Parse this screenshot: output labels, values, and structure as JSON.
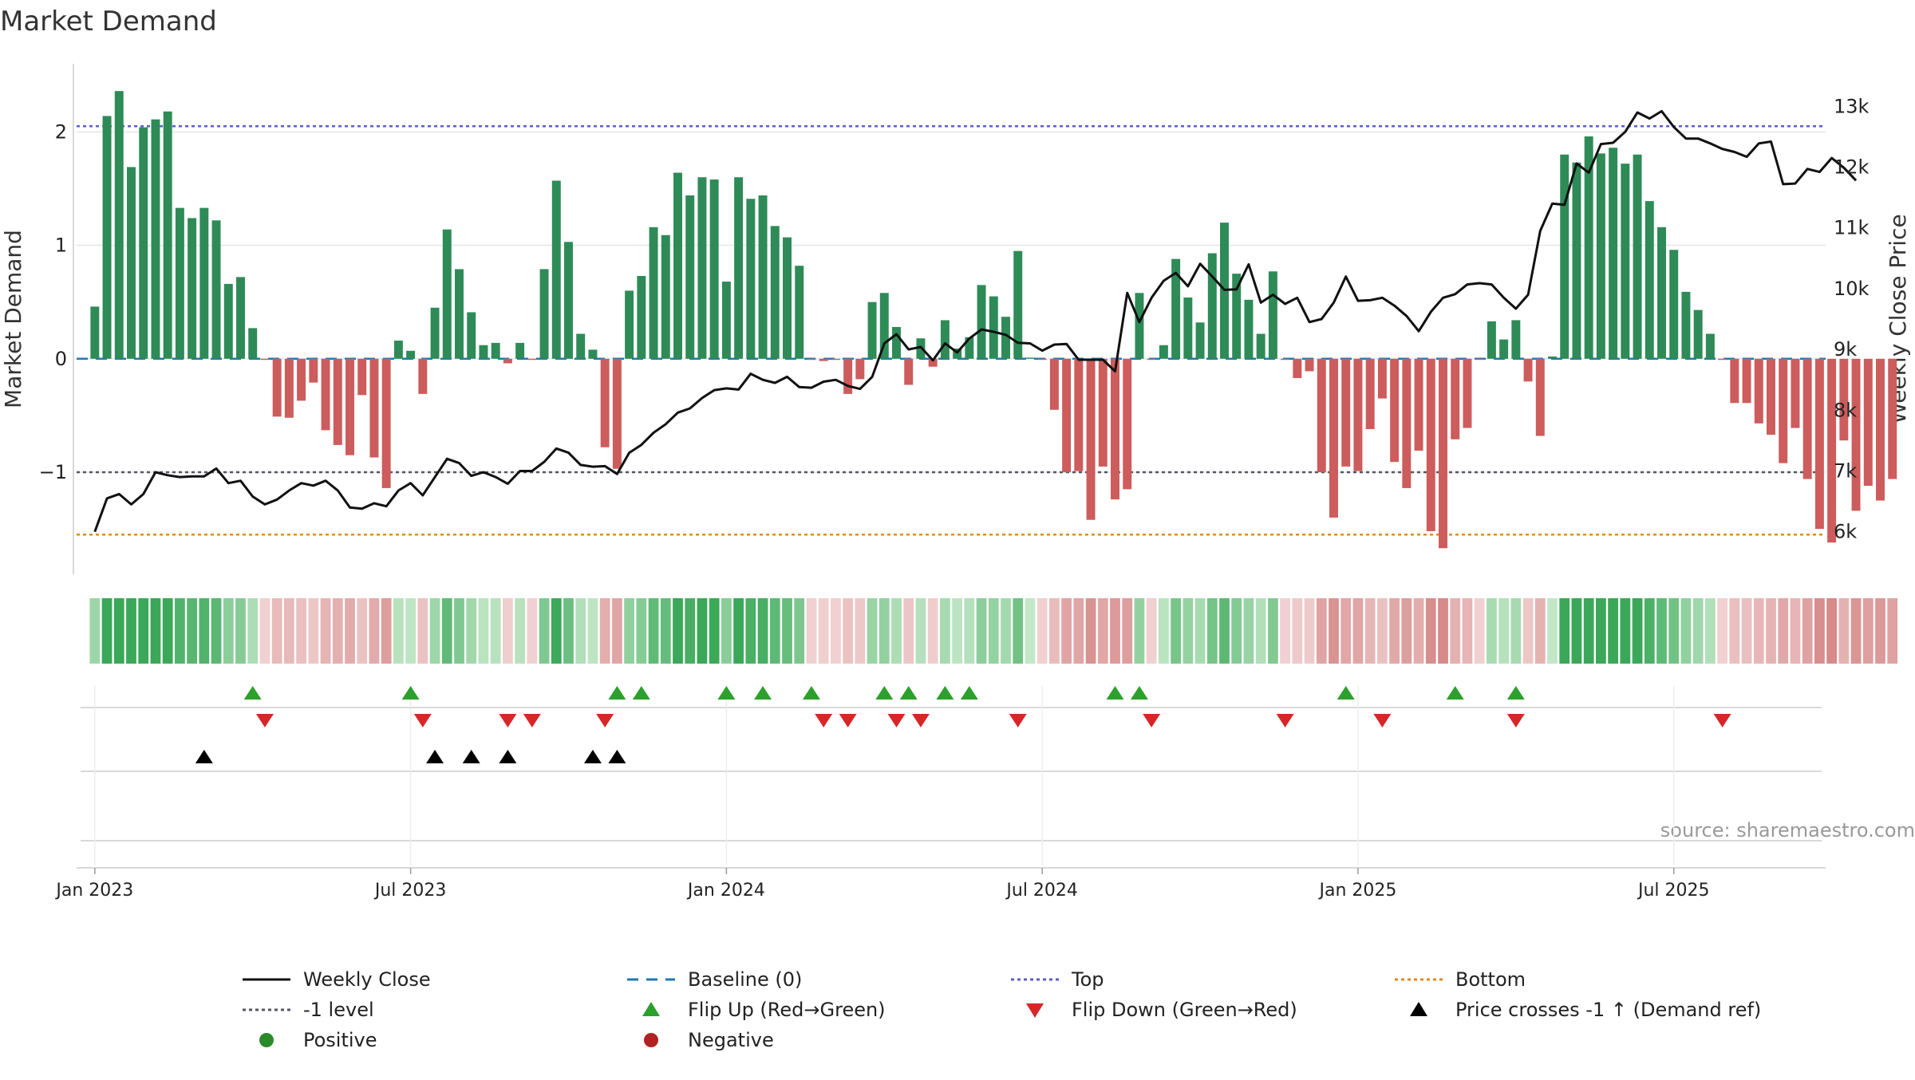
{
  "chart_data": {
    "type": "bar",
    "title": "Market Demand",
    "source": "source: sharemaestro.com",
    "y_left": {
      "label": "Market Demand",
      "ticks": [
        2,
        1,
        0,
        -1
      ],
      "tick_labels": [
        "2",
        "1",
        "0",
        "−1"
      ],
      "range": [
        -1.9,
        2.6
      ]
    },
    "y_right": {
      "label": "Weekly Close Price",
      "ticks": [
        13000,
        12000,
        11000,
        10000,
        9000,
        8000,
        7000,
        6000
      ],
      "tick_labels": [
        "13k",
        "12k",
        "11k",
        "10k",
        "9k",
        "8k",
        "7k",
        "6k"
      ],
      "range": [
        5300,
        13700
      ]
    },
    "x": {
      "start": "2022-12-26",
      "weeks": 143,
      "ticks": [
        0,
        26,
        52,
        78,
        104,
        130
      ],
      "tick_labels": [
        "Jan 2023",
        "Jul 2023",
        "Jan 2024",
        "Jul 2024",
        "Jan 2025",
        "Jul 2025"
      ],
      "range": [
        -1.5,
        142.5
      ]
    },
    "reference_lines": {
      "top": 2.05,
      "minus_one": -1.0,
      "bottom": -1.55,
      "baseline": 0
    },
    "demand": [
      0.46,
      2.14,
      2.36,
      1.69,
      2.04,
      2.11,
      2.18,
      1.33,
      1.24,
      1.33,
      1.22,
      0.66,
      0.72,
      0.27,
      -0.01,
      -0.51,
      -0.52,
      -0.37,
      -0.21,
      -0.63,
      -0.76,
      -0.85,
      -0.32,
      -0.87,
      -1.14,
      0.16,
      0.07,
      -0.31,
      0.45,
      1.14,
      0.79,
      0.41,
      0.12,
      0.14,
      -0.04,
      0.14,
      -0.01,
      0.79,
      1.57,
      1.03,
      0.22,
      0.08,
      -0.78,
      -0.97,
      0.6,
      0.73,
      1.16,
      1.09,
      1.64,
      1.44,
      1.6,
      1.58,
      0.68,
      1.6,
      1.41,
      1.44,
      1.17,
      1.07,
      0.82,
      -0.01,
      -0.02,
      -0.01,
      -0.31,
      -0.18,
      0.5,
      0.58,
      0.28,
      -0.23,
      0.18,
      -0.07,
      0.34,
      0.09,
      0.19,
      0.65,
      0.55,
      0.37,
      0.95,
      0.01,
      -0.01,
      -0.45,
      -1.0,
      -0.99,
      -1.42,
      -0.95,
      -1.24,
      -1.15,
      0.58,
      -0.01,
      0.12,
      0.88,
      0.54,
      0.32,
      0.93,
      1.2,
      0.75,
      0.52,
      0.22,
      0.77,
      -0.01,
      -0.17,
      -0.11,
      -1.0,
      -1.4,
      -0.95,
      -0.99,
      -0.62,
      -0.35,
      -0.91,
      -1.14,
      -0.81,
      -1.52,
      -1.67,
      -0.71,
      -0.61,
      -0.01,
      0.33,
      0.17,
      0.34,
      -0.2,
      -0.68,
      0.02,
      1.8,
      1.73,
      1.96,
      1.81,
      1.86,
      1.72,
      1.8,
      1.39,
      1.16,
      0.96,
      0.59,
      0.43,
      0.22,
      -0.01,
      -0.39,
      -0.39,
      -0.57,
      -0.67,
      -0.92,
      -0.61,
      -1.06,
      -1.5,
      -1.62,
      -0.72,
      -1.34,
      -1.12,
      -1.25,
      -1.06
    ],
    "weekly_close": [
      6000,
      6550,
      6620,
      6450,
      6620,
      6980,
      6930,
      6900,
      6910,
      6910,
      7040,
      6800,
      6840,
      6580,
      6450,
      6530,
      6680,
      6800,
      6760,
      6840,
      6680,
      6400,
      6380,
      6470,
      6420,
      6680,
      6800,
      6600,
      6900,
      7200,
      7130,
      6920,
      6980,
      6900,
      6790,
      7000,
      7000,
      7150,
      7370,
      7300,
      7100,
      7070,
      7080,
      6950,
      7300,
      7430,
      7630,
      7770,
      7960,
      8030,
      8200,
      8330,
      8360,
      8340,
      8600,
      8500,
      8450,
      8550,
      8380,
      8370,
      8470,
      8500,
      8400,
      8350,
      8550,
      9100,
      9250,
      9000,
      9040,
      8820,
      9100,
      8950,
      9180,
      9330,
      9290,
      9240,
      9110,
      9100,
      8980,
      9080,
      9090,
      8830,
      8830,
      8830,
      8640,
      9930,
      9450,
      9850,
      10130,
      10260,
      10040,
      10410,
      10200,
      9980,
      9990,
      10400,
      9770,
      9900,
      9750,
      9850,
      9450,
      9500,
      9770,
      10200,
      9800,
      9810,
      9850,
      9720,
      9550,
      9300,
      9620,
      9850,
      9910,
      10070,
      10090,
      10070,
      9850,
      9670,
      9900,
      10950,
      11400,
      11380,
      12060,
      11910,
      12380,
      12400,
      12580,
      12900,
      12800,
      12920,
      12660,
      12470,
      12470,
      12390,
      12300,
      12250,
      12170,
      12390,
      12420,
      11720,
      11730,
      11970,
      11920,
      12150,
      11990,
      11780
    ],
    "heat_strip": "weekly demand color band (green = positive, red = negative)",
    "markers": {
      "flip_up_weeks": [
        13,
        26,
        43,
        45,
        52,
        55,
        59,
        65,
        67,
        70,
        72,
        84,
        86,
        103,
        112,
        117
      ],
      "flip_down_weeks": [
        14,
        27,
        34,
        36,
        42,
        60,
        62,
        66,
        68,
        76,
        87,
        98,
        106,
        117,
        134
      ],
      "price_cross_weeks": [
        9,
        28,
        31,
        34,
        41,
        43
      ]
    },
    "legend": [
      {
        "label": "Weekly Close",
        "symbol": "line-solid",
        "color": "#111111"
      },
      {
        "label": "Baseline (0)",
        "symbol": "line-dashed",
        "color": "#1f77b4"
      },
      {
        "label": "Top",
        "symbol": "line-dotted",
        "color": "#5b5fc7"
      },
      {
        "label": "Bottom",
        "symbol": "line-dotted",
        "color": "#e08a1e"
      },
      {
        "label": "-1 level",
        "symbol": "line-dotted",
        "color": "#555566"
      },
      {
        "label": "Flip Up (Red→Green)",
        "symbol": "triangle-up",
        "color": "#2ca02c"
      },
      {
        "label": "Flip Down (Green→Red)",
        "symbol": "triangle-down",
        "color": "#d62728"
      },
      {
        "label": "Price crosses -1 ↑ (Demand ref)",
        "symbol": "triangle-up",
        "color": "#000000"
      },
      {
        "label": "Positive",
        "symbol": "circle",
        "color": "#2a8a2a"
      },
      {
        "label": "Negative",
        "symbol": "circle",
        "color": "#b22222"
      }
    ],
    "colors": {
      "positive_bar": "#2e8b57",
      "negative_bar": "#cd5c5c",
      "close_line": "#111111",
      "grid": "#e6e6e6"
    }
  }
}
